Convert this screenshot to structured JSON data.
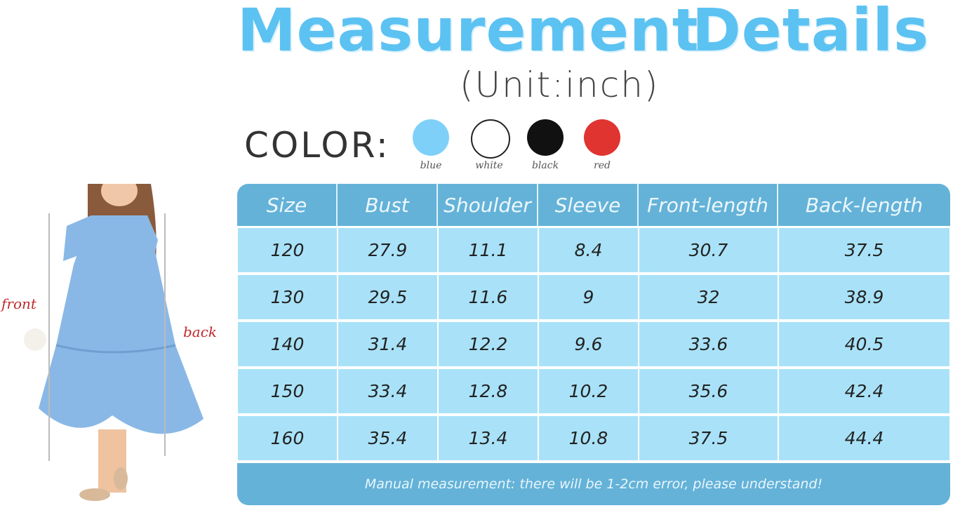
{
  "header": {
    "title_word1": "Measurement",
    "title_word2": "Details",
    "unit": "(Unit:inch)"
  },
  "colors": {
    "label": "COLOR:",
    "swatches": [
      {
        "name": "blue",
        "hex": "#7fd0f8"
      },
      {
        "name": "white",
        "hex": "#ffffff"
      },
      {
        "name": "black",
        "hex": "#111111"
      },
      {
        "name": "red",
        "hex": "#e03430"
      }
    ]
  },
  "model": {
    "front_label": "front",
    "back_label": "back",
    "dress_color": "#8ab8e6"
  },
  "table": {
    "columns": [
      "Size",
      "Bust",
      "Shoulder",
      "Sleeve",
      "Front-length",
      "Back-length"
    ],
    "rows": [
      [
        "120",
        "27.9",
        "11.1",
        "8.4",
        "30.7",
        "37.5"
      ],
      [
        "130",
        "29.5",
        "11.6",
        "9",
        "32",
        "38.9"
      ],
      [
        "140",
        "31.4",
        "12.2",
        "9.6",
        "33.6",
        "40.5"
      ],
      [
        "150",
        "33.4",
        "12.8",
        "10.2",
        "35.6",
        "42.4"
      ],
      [
        "160",
        "35.4",
        "13.4",
        "10.8",
        "37.5",
        "44.4"
      ]
    ],
    "footer": "Manual measurement: there will be 1-2cm error, please understand!"
  }
}
